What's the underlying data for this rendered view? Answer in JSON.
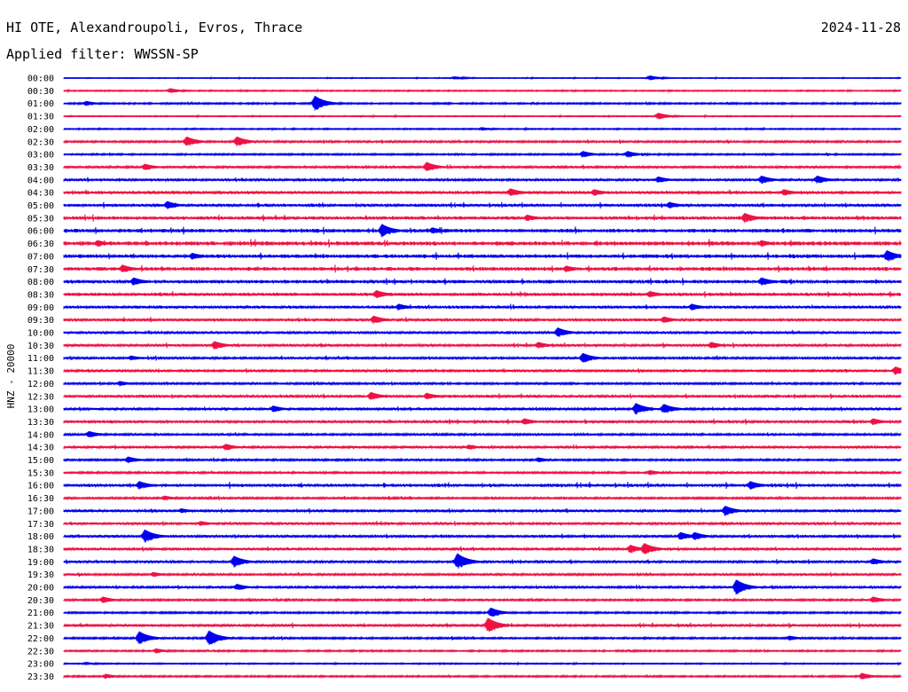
{
  "header": {
    "station": "HI OTE, Alexandroupoli, Evros, Thrace",
    "date": "2024-11-28",
    "filter": "Applied filter: WWSSN-SP"
  },
  "colors": {
    "even_trace": "#0000ee",
    "odd_trace": "#ee1144",
    "text": "#000000",
    "background": "#ffffff"
  },
  "chart_data": {
    "type": "line",
    "title": "HI OTE, Alexandroupoli, Evros, Thrace",
    "subtitle": "Applied filter: WWSSN-SP",
    "ylabel": "HNZ - 20000",
    "xlabel": "",
    "rows": [
      "00:00",
      "00:30",
      "01:00",
      "01:30",
      "02:00",
      "02:30",
      "03:00",
      "03:30",
      "04:00",
      "04:30",
      "05:00",
      "05:30",
      "06:00",
      "06:30",
      "07:00",
      "07:30",
      "08:00",
      "08:30",
      "09:00",
      "09:30",
      "10:00",
      "10:30",
      "11:00",
      "11:30",
      "12:00",
      "12:30",
      "13:00",
      "13:30",
      "14:00",
      "14:30",
      "15:00",
      "15:30",
      "16:00",
      "16:30",
      "17:00",
      "17:30",
      "18:00",
      "18:30",
      "19:00",
      "19:30",
      "20:00",
      "20:30",
      "21:00",
      "21:30",
      "22:00",
      "22:30",
      "23:00",
      "23:30"
    ],
    "row_minutes": 30,
    "noise_level": [
      0.4,
      0.6,
      0.8,
      0.5,
      0.6,
      1.0,
      0.8,
      1.2,
      1.2,
      1.5,
      1.4,
      1.6,
      1.8,
      2.0,
      1.8,
      1.8,
      1.7,
      1.6,
      1.4,
      1.3,
      1.2,
      1.2,
      1.1,
      1.1,
      1.0,
      1.3,
      1.1,
      1.4,
      1.0,
      1.2,
      1.0,
      1.0,
      1.5,
      1.0,
      1.2,
      1.2,
      1.2,
      1.2,
      1.2,
      1.1,
      1.1,
      1.0,
      0.9,
      1.2,
      0.9,
      0.8,
      0.6,
      0.8
    ],
    "events": [
      {
        "row": 0,
        "minute": 21.0,
        "amp": 3
      },
      {
        "row": 0,
        "minute": 14.0,
        "amp": 2
      },
      {
        "row": 1,
        "minute": 3.8,
        "amp": 3
      },
      {
        "row": 2,
        "minute": 9.0,
        "amp": 9
      },
      {
        "row": 2,
        "minute": 0.8,
        "amp": 3
      },
      {
        "row": 3,
        "minute": 21.3,
        "amp": 4
      },
      {
        "row": 4,
        "minute": 15.0,
        "amp": 2
      },
      {
        "row": 5,
        "minute": 4.4,
        "amp": 6
      },
      {
        "row": 5,
        "minute": 6.2,
        "amp": 6
      },
      {
        "row": 6,
        "minute": 18.6,
        "amp": 4
      },
      {
        "row": 6,
        "minute": 20.2,
        "amp": 4
      },
      {
        "row": 7,
        "minute": 2.9,
        "amp": 4
      },
      {
        "row": 7,
        "minute": 13.0,
        "amp": 6
      },
      {
        "row": 8,
        "minute": 21.3,
        "amp": 4
      },
      {
        "row": 8,
        "minute": 25.0,
        "amp": 5
      },
      {
        "row": 8,
        "minute": 27.0,
        "amp": 5
      },
      {
        "row": 9,
        "minute": 16.0,
        "amp": 5
      },
      {
        "row": 9,
        "minute": 19.0,
        "amp": 4
      },
      {
        "row": 9,
        "minute": 25.8,
        "amp": 4
      },
      {
        "row": 10,
        "minute": 3.7,
        "amp": 5
      },
      {
        "row": 10,
        "minute": 21.7,
        "amp": 4
      },
      {
        "row": 11,
        "minute": 16.6,
        "amp": 4
      },
      {
        "row": 11,
        "minute": 24.4,
        "amp": 6
      },
      {
        "row": 12,
        "minute": 11.4,
        "amp": 8
      },
      {
        "row": 12,
        "minute": 13.2,
        "amp": 4
      },
      {
        "row": 13,
        "minute": 1.2,
        "amp": 4
      },
      {
        "row": 13,
        "minute": 25.0,
        "amp": 4
      },
      {
        "row": 14,
        "minute": 4.6,
        "amp": 4
      },
      {
        "row": 14,
        "minute": 29.5,
        "amp": 7
      },
      {
        "row": 15,
        "minute": 2.1,
        "amp": 5
      },
      {
        "row": 15,
        "minute": 18.0,
        "amp": 4
      },
      {
        "row": 16,
        "minute": 2.5,
        "amp": 5
      },
      {
        "row": 16,
        "minute": 25.0,
        "amp": 5
      },
      {
        "row": 17,
        "minute": 11.2,
        "amp": 5
      },
      {
        "row": 17,
        "minute": 21.0,
        "amp": 4
      },
      {
        "row": 18,
        "minute": 12.0,
        "amp": 4
      },
      {
        "row": 18,
        "minute": 22.5,
        "amp": 4
      },
      {
        "row": 19,
        "minute": 11.1,
        "amp": 5
      },
      {
        "row": 19,
        "minute": 21.5,
        "amp": 4
      },
      {
        "row": 20,
        "minute": 17.7,
        "amp": 6
      },
      {
        "row": 21,
        "minute": 5.4,
        "amp": 5
      },
      {
        "row": 21,
        "minute": 17.0,
        "amp": 4
      },
      {
        "row": 21,
        "minute": 23.2,
        "amp": 4
      },
      {
        "row": 22,
        "minute": 18.6,
        "amp": 6
      },
      {
        "row": 22,
        "minute": 2.4,
        "amp": 3
      },
      {
        "row": 23,
        "minute": 29.8,
        "amp": 5
      },
      {
        "row": 24,
        "minute": 2.0,
        "amp": 3
      },
      {
        "row": 25,
        "minute": 11.0,
        "amp": 5
      },
      {
        "row": 25,
        "minute": 13.0,
        "amp": 4
      },
      {
        "row": 26,
        "minute": 20.5,
        "amp": 7
      },
      {
        "row": 26,
        "minute": 21.5,
        "amp": 6
      },
      {
        "row": 26,
        "minute": 7.5,
        "amp": 4
      },
      {
        "row": 27,
        "minute": 16.5,
        "amp": 4
      },
      {
        "row": 27,
        "minute": 29.0,
        "amp": 4
      },
      {
        "row": 28,
        "minute": 0.9,
        "amp": 4
      },
      {
        "row": 29,
        "minute": 5.8,
        "amp": 4
      },
      {
        "row": 29,
        "minute": 14.5,
        "amp": 3
      },
      {
        "row": 30,
        "minute": 2.3,
        "amp": 4
      },
      {
        "row": 30,
        "minute": 17.0,
        "amp": 3
      },
      {
        "row": 31,
        "minute": 21.0,
        "amp": 3
      },
      {
        "row": 32,
        "minute": 2.7,
        "amp": 5
      },
      {
        "row": 32,
        "minute": 24.6,
        "amp": 5
      },
      {
        "row": 33,
        "minute": 3.6,
        "amp": 3
      },
      {
        "row": 34,
        "minute": 23.7,
        "amp": 6
      },
      {
        "row": 34,
        "minute": 4.2,
        "amp": 3
      },
      {
        "row": 35,
        "minute": 4.9,
        "amp": 3
      },
      {
        "row": 36,
        "minute": 2.9,
        "amp": 8
      },
      {
        "row": 36,
        "minute": 22.1,
        "amp": 5
      },
      {
        "row": 36,
        "minute": 22.6,
        "amp": 5
      },
      {
        "row": 37,
        "minute": 20.8,
        "amp": 7
      },
      {
        "row": 37,
        "minute": 20.3,
        "amp": 5
      },
      {
        "row": 38,
        "minute": 14.1,
        "amp": 10
      },
      {
        "row": 38,
        "minute": 6.1,
        "amp": 7
      },
      {
        "row": 38,
        "minute": 29.0,
        "amp": 4
      },
      {
        "row": 39,
        "minute": 3.2,
        "amp": 3
      },
      {
        "row": 40,
        "minute": 24.1,
        "amp": 9
      },
      {
        "row": 40,
        "minute": 6.2,
        "amp": 4
      },
      {
        "row": 41,
        "minute": 1.4,
        "amp": 4
      },
      {
        "row": 41,
        "minute": 29.0,
        "amp": 4
      },
      {
        "row": 42,
        "minute": 15.3,
        "amp": 6
      },
      {
        "row": 43,
        "minute": 15.2,
        "amp": 9
      },
      {
        "row": 44,
        "minute": 2.7,
        "amp": 8
      },
      {
        "row": 44,
        "minute": 5.2,
        "amp": 9
      },
      {
        "row": 44,
        "minute": 26.0,
        "amp": 3
      },
      {
        "row": 45,
        "minute": 3.3,
        "amp": 3
      },
      {
        "row": 46,
        "minute": 0.8,
        "amp": 2
      },
      {
        "row": 47,
        "minute": 28.6,
        "amp": 4
      },
      {
        "row": 47,
        "minute": 1.5,
        "amp": 3
      }
    ]
  }
}
